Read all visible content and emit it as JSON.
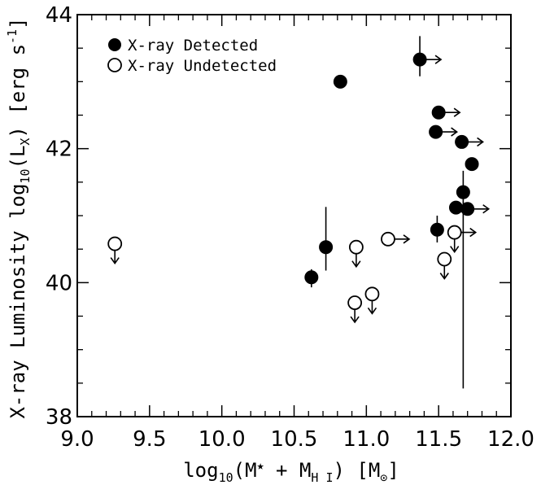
{
  "chart_data": {
    "type": "scatter",
    "title": "",
    "xlabel": {
      "prefix": "log",
      "sub": "10",
      "paren_open": "(M",
      "star": "★",
      "plus": " + M",
      "hsub": "H I",
      "paren_close": ") [M",
      "sun": "⊙",
      "end": "]"
    },
    "ylabel": {
      "prefix": "X-ray Luminosity log",
      "sub10": "10",
      "mid": "(L",
      "subx": "X",
      "end": ") [erg s",
      "sup": "-1",
      "close": "]"
    },
    "xlim": [
      9.0,
      12.0
    ],
    "ylim": [
      38,
      44
    ],
    "xticks": [
      "9.0",
      "9.5",
      "10.0",
      "10.5",
      "11.0",
      "11.5",
      "12.0"
    ],
    "yticks": [
      "38",
      "40",
      "42",
      "44"
    ],
    "grid": false,
    "legend_position": "top-left",
    "series": [
      {
        "name": "X-ray Detected",
        "marker": "filled-circle",
        "points": [
          {
            "x": 10.62,
            "y": 40.08,
            "yerr": [
              39.93,
              40.2
            ],
            "xlim_arrow": false
          },
          {
            "x": 10.72,
            "y": 40.53,
            "yerr": [
              40.18,
              41.13
            ],
            "xlim_arrow": false
          },
          {
            "x": 10.82,
            "y": 43.0,
            "xlim_arrow": false
          },
          {
            "x": 11.37,
            "y": 43.33,
            "yerr": [
              43.08,
              43.68
            ],
            "xlim_arrow": true
          },
          {
            "x": 11.5,
            "y": 42.54,
            "xlim_arrow": true
          },
          {
            "x": 11.48,
            "y": 42.25,
            "xlim_arrow": true
          },
          {
            "x": 11.66,
            "y": 42.1,
            "xlim_arrow": true
          },
          {
            "x": 11.73,
            "y": 41.77,
            "xlim_arrow": false
          },
          {
            "x": 11.67,
            "y": 41.35,
            "yerr": [
              38.42,
              41.67
            ],
            "xlim_arrow": false
          },
          {
            "x": 11.62,
            "y": 41.12,
            "xlim_arrow": false
          },
          {
            "x": 11.7,
            "y": 41.1,
            "xlim_arrow": true
          },
          {
            "x": 11.49,
            "y": 40.79,
            "yerr": [
              40.6,
              41.0
            ],
            "xlim_arrow": false
          }
        ]
      },
      {
        "name": "X-ray Undetected",
        "marker": "open-circle",
        "points": [
          {
            "x": 9.26,
            "y": 40.58,
            "ylim_arrow": true,
            "xlim_arrow": false
          },
          {
            "x": 10.93,
            "y": 40.53,
            "ylim_arrow": true,
            "xlim_arrow": false
          },
          {
            "x": 11.15,
            "y": 40.65,
            "ylim_arrow": false,
            "xlim_arrow": true
          },
          {
            "x": 10.92,
            "y": 39.7,
            "ylim_arrow": true,
            "xlim_arrow": false
          },
          {
            "x": 11.04,
            "y": 39.83,
            "ylim_arrow": true,
            "xlim_arrow": false
          },
          {
            "x": 11.54,
            "y": 40.35,
            "ylim_arrow": true,
            "xlim_arrow": false
          },
          {
            "x": 11.61,
            "y": 40.75,
            "ylim_arrow": true,
            "xlim_arrow": true
          }
        ]
      }
    ]
  }
}
